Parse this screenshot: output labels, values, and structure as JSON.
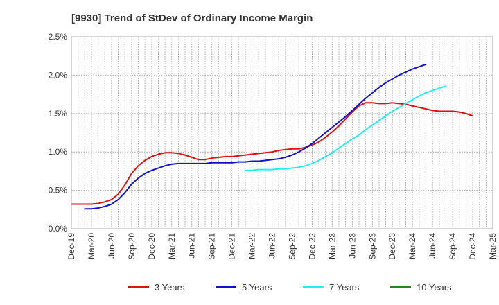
{
  "chart_data": {
    "type": "line",
    "title": "[9930]  Trend of StDev of Ordinary Income Margin",
    "xlabel": "",
    "ylabel": "",
    "ylim": [
      0,
      2.5
    ],
    "yticks": [
      "0.0%",
      "0.5%",
      "1.0%",
      "1.5%",
      "2.0%",
      "2.5%"
    ],
    "xticks": [
      "Dec-19",
      "Mar-20",
      "Jun-20",
      "Sep-20",
      "Dec-20",
      "Mar-21",
      "Jun-21",
      "Sep-21",
      "Dec-21",
      "Mar-22",
      "Jun-22",
      "Sep-22",
      "Dec-22",
      "Mar-23",
      "Jun-23",
      "Sep-23",
      "Dec-23",
      "Mar-24",
      "Jun-24",
      "Sep-24",
      "Dec-24",
      "Mar-25"
    ],
    "grid": true,
    "legend_position": "bottom",
    "x_start": "Dec-19",
    "x_step_months": 1,
    "series": [
      {
        "name": "3 Years",
        "color": "#dd1111",
        "start_index": 0,
        "values": [
          0.32,
          0.32,
          0.32,
          0.32,
          0.33,
          0.35,
          0.38,
          0.45,
          0.57,
          0.72,
          0.82,
          0.89,
          0.94,
          0.97,
          0.99,
          0.99,
          0.98,
          0.96,
          0.93,
          0.9,
          0.9,
          0.92,
          0.93,
          0.94,
          0.94,
          0.95,
          0.96,
          0.97,
          0.98,
          0.99,
          1.0,
          1.02,
          1.03,
          1.04,
          1.04,
          1.06,
          1.09,
          1.13,
          1.19,
          1.26,
          1.34,
          1.43,
          1.52,
          1.6,
          1.64,
          1.64,
          1.63,
          1.63,
          1.64,
          1.63,
          1.62,
          1.6,
          1.58,
          1.56,
          1.54,
          1.53,
          1.53,
          1.53,
          1.52,
          1.5,
          1.47
        ]
      },
      {
        "name": "5 Years",
        "color": "#1111cc",
        "start_index": 2,
        "values": [
          0.26,
          0.26,
          0.27,
          0.29,
          0.32,
          0.38,
          0.47,
          0.58,
          0.66,
          0.72,
          0.76,
          0.79,
          0.82,
          0.84,
          0.85,
          0.85,
          0.85,
          0.85,
          0.85,
          0.86,
          0.86,
          0.86,
          0.86,
          0.87,
          0.87,
          0.88,
          0.88,
          0.89,
          0.9,
          0.91,
          0.93,
          0.96,
          1.0,
          1.05,
          1.11,
          1.18,
          1.25,
          1.32,
          1.39,
          1.46,
          1.54,
          1.62,
          1.7,
          1.77,
          1.84,
          1.9,
          1.95,
          2.0,
          2.04,
          2.08,
          2.11,
          2.14
        ]
      },
      {
        "name": "7 Years",
        "color": "#22eeee",
        "start_index": 26,
        "values": [
          0.76,
          0.76,
          0.77,
          0.77,
          0.77,
          0.78,
          0.78,
          0.79,
          0.8,
          0.82,
          0.85,
          0.89,
          0.94,
          0.99,
          1.05,
          1.11,
          1.17,
          1.22,
          1.29,
          1.35,
          1.41,
          1.47,
          1.53,
          1.58,
          1.63,
          1.68,
          1.73,
          1.77,
          1.8,
          1.83,
          1.86
        ]
      },
      {
        "name": "10 Years",
        "color": "#228822",
        "start_index": 0,
        "values": []
      }
    ]
  }
}
